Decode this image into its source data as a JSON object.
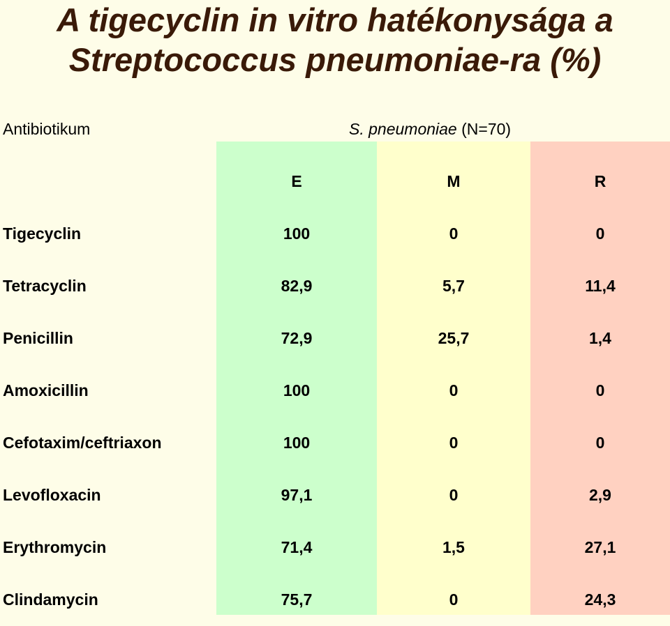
{
  "title_line1": "A tigecyclin in vitro hatékonysága a",
  "title_line2": "Streptococcus pneumoniae-ra (%)",
  "header": {
    "antibiotic_label": "Antibiotikum",
    "organism_name": "S. pneumoniae",
    "organism_n": " (N=70)"
  },
  "columns": [
    "E",
    "M",
    "R"
  ],
  "colors": {
    "background": "#FEFDE8",
    "title": "#3A1A08",
    "col_e": "#CCFFCC",
    "col_m": "#FFFFCC",
    "col_r": "#FFD1C1"
  },
  "rows": [
    {
      "name": "Tigecyclin",
      "e": "100",
      "m": "0",
      "r": "0"
    },
    {
      "name": "Tetracyclin",
      "e": "82,9",
      "m": "5,7",
      "r": "11,4"
    },
    {
      "name": "Penicillin",
      "e": "72,9",
      "m": "25,7",
      "r": "1,4"
    },
    {
      "name": "Amoxicillin",
      "e": "100",
      "m": "0",
      "r": "0"
    },
    {
      "name": "Cefotaxim/ceftriaxon",
      "e": "100",
      "m": "0",
      "r": "0"
    },
    {
      "name": "Levofloxacin",
      "e": "97,1",
      "m": "0",
      "r": "2,9"
    },
    {
      "name": "Erythromycin",
      "e": "71,4",
      "m": "1,5",
      "r": "27,1"
    },
    {
      "name": "Clindamycin",
      "e": "75,7",
      "m": "0",
      "r": "24,3"
    }
  ]
}
